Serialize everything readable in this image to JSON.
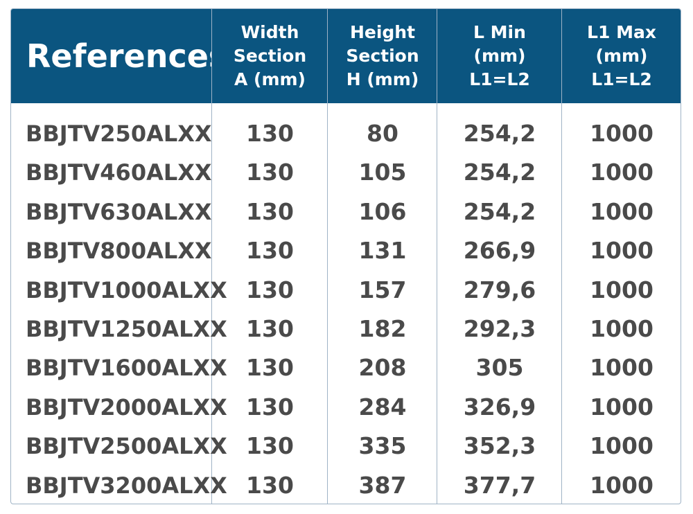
{
  "table": {
    "header": [
      [
        "References"
      ],
      [
        "Width",
        "Section",
        "A (mm)"
      ],
      [
        "Height",
        "Section",
        "H (mm)"
      ],
      [
        "L Min",
        "(mm)",
        "L1=L2"
      ],
      [
        "L1 Max",
        "(mm)",
        "L1=L2"
      ]
    ],
    "rows": [
      [
        "BBJTV250ALXX",
        "130",
        "80",
        "254,2",
        "1000"
      ],
      [
        "BBJTV460ALXX",
        "130",
        "105",
        "254,2",
        "1000"
      ],
      [
        "BBJTV630ALXX",
        "130",
        "106",
        "254,2",
        "1000"
      ],
      [
        "BBJTV800ALXX",
        "130",
        "131",
        "266,9",
        "1000"
      ],
      [
        "BBJTV1000ALXX",
        "130",
        "157",
        "279,6",
        "1000"
      ],
      [
        "BBJTV1250ALXX",
        "130",
        "182",
        "292,3",
        "1000"
      ],
      [
        "BBJTV1600ALXX",
        "130",
        "208",
        "305",
        "1000"
      ],
      [
        "BBJTV2000ALXX",
        "130",
        "284",
        "326,9",
        "1000"
      ],
      [
        "BBJTV2500ALXX",
        "130",
        "335",
        "352,3",
        "1000"
      ],
      [
        "BBJTV3200ALXX",
        "130",
        "387",
        "377,7",
        "1000"
      ]
    ]
  }
}
